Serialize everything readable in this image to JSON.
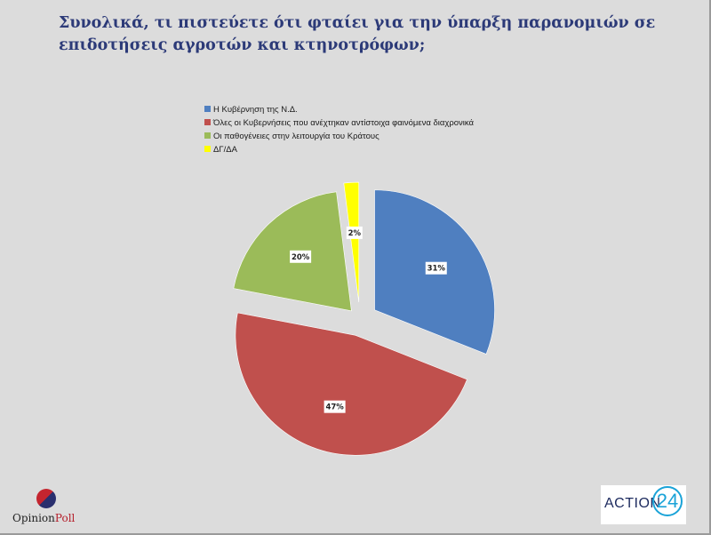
{
  "title": "Συνολικά, τι πιστεύετε ότι φταίει για την ύπαρξη παρανομιών σε επιδοτήσεις αγροτών και κτηνοτρόφων;",
  "chart_data": {
    "type": "pie",
    "exploded": true,
    "legend_position": "top",
    "slices": [
      {
        "label": "Η Κυβέρνηση της Ν.Δ.",
        "value": 31,
        "display": "31%",
        "color": "#4f7fc0"
      },
      {
        "label": "Όλες οι Κυβερνήσεις που ανέχτηκαν αντίστοιχα φαινόμενα διαχρονικά",
        "value": 47,
        "display": "47%",
        "color": "#c0504d"
      },
      {
        "label": "Οι παθογένειες στην λειτουργία του Κράτους",
        "value": 20,
        "display": "20%",
        "color": "#9bbb59"
      },
      {
        "label": "ΔΓ/ΔΑ",
        "value": 2,
        "display": "2%",
        "color": "#ffff00"
      }
    ]
  },
  "logos": {
    "left": {
      "brand_a": "Opinion",
      "brand_b": "Poll"
    },
    "right": {
      "word": "ACTION",
      "number": "24"
    }
  }
}
